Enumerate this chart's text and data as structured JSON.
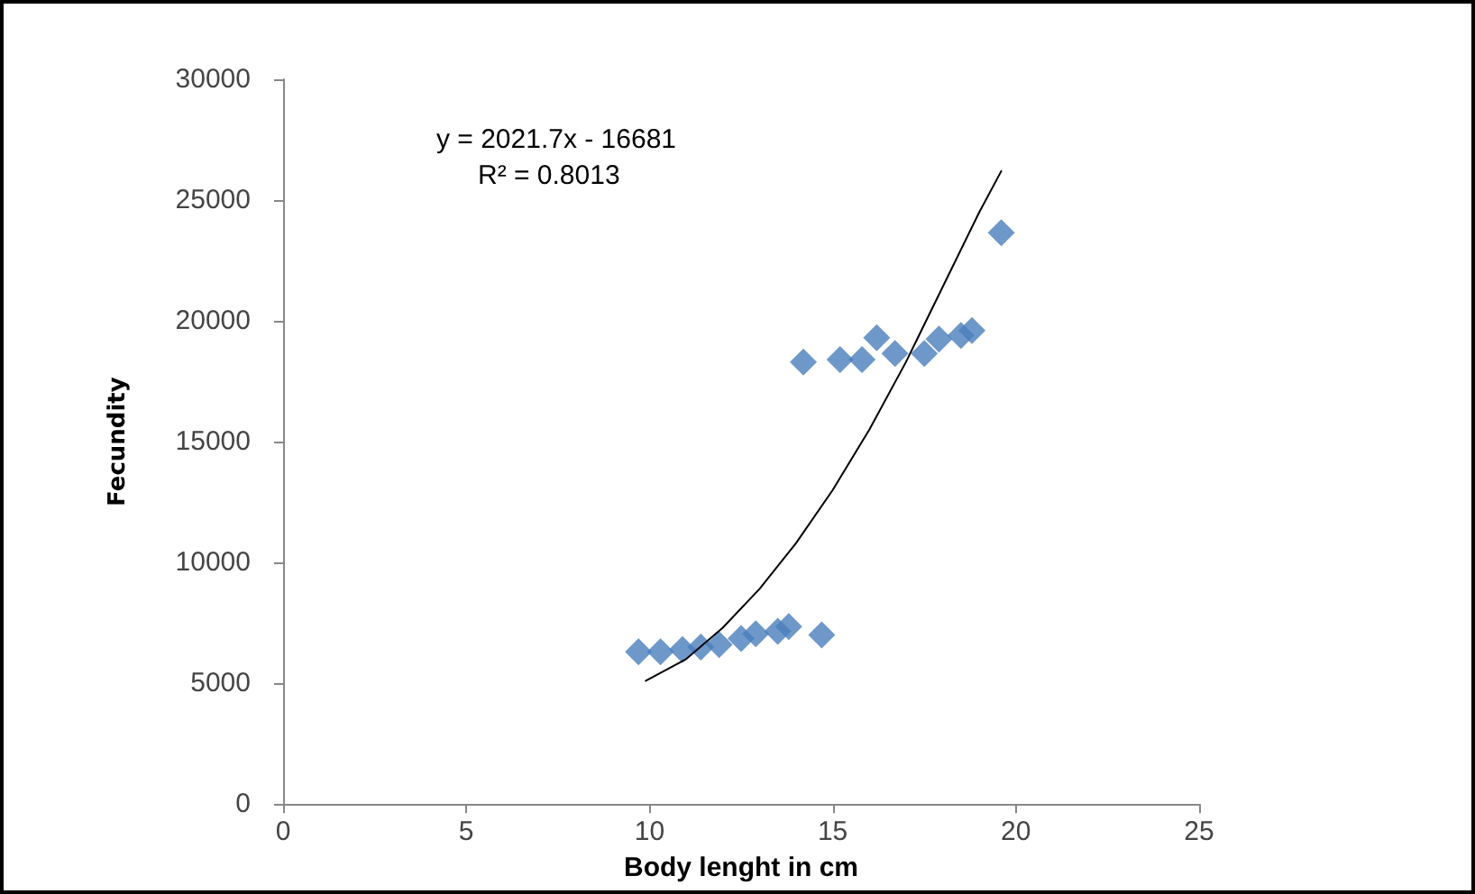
{
  "chart_data": {
    "type": "scatter",
    "xlabel": "Body lenght in cm",
    "ylabel": "Fecundity",
    "annotations": [
      "y = 2021.7x - 16681",
      "R² = 0.8013"
    ],
    "xlim": [
      0,
      25
    ],
    "xticks": [
      0,
      5,
      10,
      15,
      20,
      25
    ],
    "ylim": [
      0,
      30000
    ],
    "yticks": [
      0,
      5000,
      10000,
      15000,
      20000,
      25000,
      30000
    ],
    "grid": false,
    "marker": "diamond",
    "series": [
      {
        "color": "#4a7ebb",
        "x": [
          9.7,
          10.3,
          10.9,
          11.4,
          11.9,
          12.5,
          12.9,
          13.5,
          13.8,
          14.7,
          14.2,
          15.2,
          15.8,
          16.2,
          16.7,
          17.5,
          17.9,
          18.5,
          18.8,
          19.6
        ],
        "values": [
          6300,
          6300,
          6400,
          6500,
          6600,
          6850,
          7050,
          7150,
          7350,
          7000,
          18300,
          18400,
          18400,
          19300,
          18650,
          18650,
          19250,
          19400,
          19600,
          23650
        ]
      },
      {
        "type": "line",
        "color": "#000000",
        "marker": "none",
        "line_style": "solid",
        "x": [
          9.9,
          11,
          12,
          13,
          14,
          15,
          16,
          17,
          18,
          19,
          19.6
        ],
        "values": [
          5100,
          6000,
          7300,
          8900,
          10800,
          13000,
          15500,
          18300,
          21400,
          24500,
          26200
        ]
      }
    ]
  }
}
